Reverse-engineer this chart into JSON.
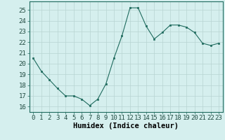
{
  "x": [
    0,
    1,
    2,
    3,
    4,
    5,
    6,
    7,
    8,
    9,
    10,
    11,
    12,
    13,
    14,
    15,
    16,
    17,
    18,
    19,
    20,
    21,
    22,
    23
  ],
  "y": [
    20.5,
    19.3,
    18.5,
    17.7,
    17.0,
    17.0,
    16.7,
    16.1,
    16.7,
    18.1,
    20.5,
    22.6,
    25.2,
    25.2,
    23.5,
    22.3,
    22.9,
    23.6,
    23.6,
    23.4,
    22.9,
    21.9,
    21.7,
    21.9
  ],
  "xlabel": "Humidex (Indice chaleur)",
  "ylim": [
    15.5,
    25.8
  ],
  "xlim": [
    -0.5,
    23.5
  ],
  "yticks": [
    16,
    17,
    18,
    19,
    20,
    21,
    22,
    23,
    24,
    25
  ],
  "xticks": [
    0,
    1,
    2,
    3,
    4,
    5,
    6,
    7,
    8,
    9,
    10,
    11,
    12,
    13,
    14,
    15,
    16,
    17,
    18,
    19,
    20,
    21,
    22,
    23
  ],
  "line_color": "#1f6b5e",
  "marker_color": "#1f6b5e",
  "bg_color": "#d5efee",
  "grid_color": "#b8d4d2",
  "xlabel_fontsize": 7.5,
  "tick_fontsize": 6.5,
  "fig_width": 3.2,
  "fig_height": 2.0,
  "dpi": 100
}
